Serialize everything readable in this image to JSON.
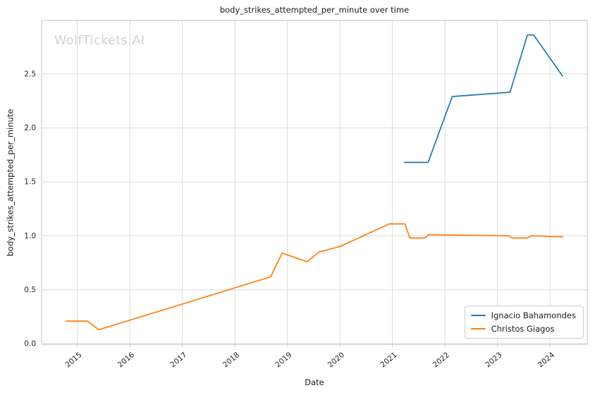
{
  "watermark": "WolfTickets.AI",
  "colors": {
    "grid": "#dcdcdc",
    "spine": "#cccccc",
    "tick_label": "#262626",
    "series_blue": "#1f77b4",
    "series_orange": "#ff7f0e"
  },
  "chart_data": {
    "type": "line",
    "title": "body_strikes_attempted_per_minute over time",
    "xlabel": "Date",
    "ylabel": "body_strikes_attempted_per_minute",
    "xlim": [
      2014.32,
      2024.71
    ],
    "ylim": [
      -0.005,
      2.995
    ],
    "x_ticks": [
      2015,
      2016,
      2017,
      2018,
      2019,
      2020,
      2021,
      2022,
      2023,
      2024
    ],
    "y_ticks": [
      "0.0",
      "0.5",
      "1.0",
      "1.5",
      "2.0",
      "2.5"
    ],
    "grid": true,
    "legend": {
      "position": "lower right"
    },
    "series": [
      {
        "name": "Ignacio Bahamondes",
        "color": "#1f77b4",
        "x": [
          2021.23,
          2021.68,
          2022.14,
          2023.24,
          2023.57,
          2023.69,
          2024.24
        ],
        "y": [
          1.68,
          1.68,
          2.29,
          2.33,
          2.86,
          2.86,
          2.48
        ]
      },
      {
        "name": "Christos Giagos",
        "color": "#ff7f0e",
        "x": [
          2014.79,
          2015.19,
          2015.41,
          2018.68,
          2018.9,
          2019.38,
          2019.6,
          2020.0,
          2020.94,
          2021.24,
          2021.33,
          2021.61,
          2021.69,
          2023.22,
          2023.28,
          2023.56,
          2023.65,
          2024.24
        ],
        "y": [
          0.21,
          0.21,
          0.13,
          0.62,
          0.84,
          0.76,
          0.85,
          0.9,
          1.11,
          1.11,
          0.98,
          0.98,
          1.01,
          1.0,
          0.98,
          0.98,
          1.0,
          0.99
        ]
      }
    ]
  }
}
